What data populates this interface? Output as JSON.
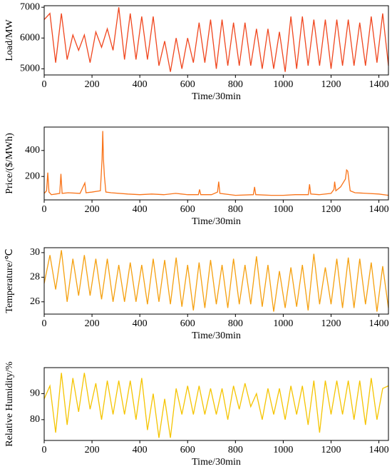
{
  "chart_data": [
    {
      "type": "line",
      "y_label": "Load/MW",
      "x_label": "Time/30min",
      "color": "#f0461e",
      "x": [
        0,
        24,
        48,
        72,
        96,
        120,
        144,
        168,
        192,
        216,
        240,
        264,
        288,
        312,
        336,
        360,
        384,
        408,
        432,
        456,
        480,
        504,
        528,
        552,
        576,
        600,
        624,
        648,
        672,
        696,
        720,
        744,
        768,
        792,
        816,
        840,
        864,
        888,
        912,
        936,
        960,
        984,
        1008,
        1032,
        1056,
        1080,
        1104,
        1128,
        1152,
        1176,
        1200,
        1224,
        1248,
        1272,
        1296,
        1320,
        1344,
        1368,
        1392,
        1416,
        1440
      ],
      "values": [
        6600,
        6800,
        5200,
        6800,
        5300,
        6100,
        5600,
        6100,
        5200,
        6200,
        5700,
        6300,
        5600,
        7000,
        5300,
        6800,
        5300,
        6700,
        5300,
        6700,
        5100,
        5900,
        4900,
        6000,
        5000,
        6000,
        5200,
        6500,
        5200,
        6600,
        5000,
        6600,
        5100,
        6500,
        5100,
        6500,
        5100,
        6300,
        5000,
        6300,
        5000,
        6200,
        4900,
        6700,
        5000,
        6700,
        5100,
        6600,
        5100,
        6600,
        5000,
        6600,
        5100,
        6600,
        5100,
        6500,
        5100,
        6700,
        5200,
        6800,
        5100
      ],
      "xlim": [
        0,
        1440
      ],
      "xticks": [
        0,
        200,
        400,
        600,
        800,
        1000,
        1200,
        1400
      ],
      "ylim": [
        4800,
        7050
      ],
      "yticks": [
        5000,
        6000,
        7000
      ]
    },
    {
      "type": "line",
      "y_label": "Price/($/MWh)",
      "x_label": "Time/30min",
      "color": "#f97318",
      "x": [
        0,
        10,
        15,
        20,
        30,
        48,
        65,
        70,
        75,
        100,
        150,
        170,
        175,
        200,
        235,
        242,
        245,
        248,
        252,
        258,
        280,
        350,
        400,
        450,
        500,
        550,
        600,
        645,
        650,
        655,
        700,
        725,
        730,
        735,
        800,
        875,
        880,
        885,
        950,
        1000,
        1050,
        1105,
        1110,
        1115,
        1150,
        1200,
        1212,
        1215,
        1220,
        1240,
        1260,
        1265,
        1270,
        1280,
        1300,
        1350,
        1400,
        1440
      ],
      "values": [
        70,
        90,
        230,
        80,
        60,
        65,
        70,
        220,
        70,
        75,
        70,
        150,
        75,
        80,
        90,
        330,
        550,
        330,
        200,
        80,
        75,
        65,
        60,
        65,
        60,
        70,
        60,
        60,
        100,
        60,
        60,
        80,
        160,
        70,
        55,
        60,
        120,
        60,
        55,
        55,
        60,
        60,
        140,
        65,
        60,
        70,
        100,
        160,
        90,
        120,
        180,
        250,
        240,
        90,
        75,
        70,
        65,
        55
      ],
      "xlim": [
        0,
        1440
      ],
      "xticks": [
        0,
        200,
        400,
        600,
        800,
        1000,
        1200,
        1400
      ],
      "ylim": [
        20,
        580
      ],
      "yticks": [
        200,
        400
      ]
    },
    {
      "type": "line",
      "y_label": "Temperature/℃",
      "x_label": "Time/30min",
      "color": "#f5a00f",
      "x": [
        0,
        24,
        48,
        72,
        96,
        120,
        144,
        168,
        192,
        216,
        240,
        264,
        288,
        312,
        336,
        360,
        384,
        408,
        432,
        456,
        480,
        504,
        528,
        552,
        576,
        600,
        624,
        648,
        672,
        696,
        720,
        744,
        768,
        792,
        816,
        840,
        864,
        888,
        912,
        936,
        960,
        984,
        1008,
        1032,
        1056,
        1080,
        1104,
        1128,
        1152,
        1176,
        1200,
        1224,
        1248,
        1272,
        1296,
        1320,
        1344,
        1368,
        1392,
        1416,
        1440
      ],
      "values": [
        27.5,
        29.8,
        27.0,
        30.2,
        26.0,
        29.5,
        26.5,
        29.8,
        26.5,
        29.5,
        26.2,
        29.5,
        26.0,
        29.0,
        26.0,
        29.2,
        26.0,
        29.0,
        25.8,
        29.5,
        26.0,
        29.4,
        25.8,
        29.6,
        25.6,
        29.0,
        25.3,
        29.2,
        25.5,
        29.4,
        25.8,
        29.0,
        25.5,
        29.5,
        25.8,
        29.0,
        25.8,
        29.7,
        25.6,
        29.0,
        25.2,
        28.5,
        25.5,
        28.8,
        25.6,
        29.0,
        25.3,
        29.9,
        25.8,
        28.8,
        25.8,
        29.5,
        25.5,
        29.6,
        25.5,
        29.5,
        25.8,
        29.2,
        25.2,
        28.9,
        25.5
      ],
      "xlim": [
        0,
        1440
      ],
      "xticks": [
        0,
        200,
        400,
        600,
        800,
        1000,
        1200,
        1400
      ],
      "ylim": [
        25,
        30.4
      ],
      "yticks": [
        26,
        28,
        30
      ]
    },
    {
      "type": "line",
      "y_label": "Relative Humidity/%",
      "x_label": "Time/30min",
      "color": "#f5c400",
      "x": [
        0,
        24,
        48,
        72,
        96,
        120,
        144,
        168,
        192,
        216,
        240,
        264,
        288,
        312,
        336,
        360,
        384,
        408,
        432,
        456,
        480,
        504,
        528,
        552,
        576,
        600,
        624,
        648,
        672,
        696,
        720,
        744,
        768,
        792,
        816,
        840,
        864,
        888,
        912,
        936,
        960,
        984,
        1008,
        1032,
        1056,
        1080,
        1104,
        1128,
        1152,
        1176,
        1200,
        1224,
        1248,
        1272,
        1296,
        1320,
        1344,
        1368,
        1392,
        1416,
        1440
      ],
      "values": [
        88,
        93,
        75,
        98,
        78,
        96,
        83,
        98,
        84,
        94,
        80,
        95,
        82,
        95,
        82,
        95,
        80,
        96,
        76,
        90,
        73,
        88,
        73,
        92,
        82,
        93,
        82,
        93,
        82,
        92,
        82,
        92,
        80,
        93,
        84,
        94,
        85,
        90,
        80,
        92,
        82,
        92,
        80,
        93,
        82,
        93,
        78,
        95,
        75,
        95,
        82,
        95,
        82,
        95,
        80,
        95,
        78,
        96,
        80,
        92,
        93
      ],
      "xlim": [
        0,
        1440
      ],
      "xticks": [
        0,
        200,
        400,
        600,
        800,
        1000,
        1200,
        1400
      ],
      "ylim": [
        72,
        100
      ],
      "yticks": [
        80,
        90
      ]
    }
  ]
}
